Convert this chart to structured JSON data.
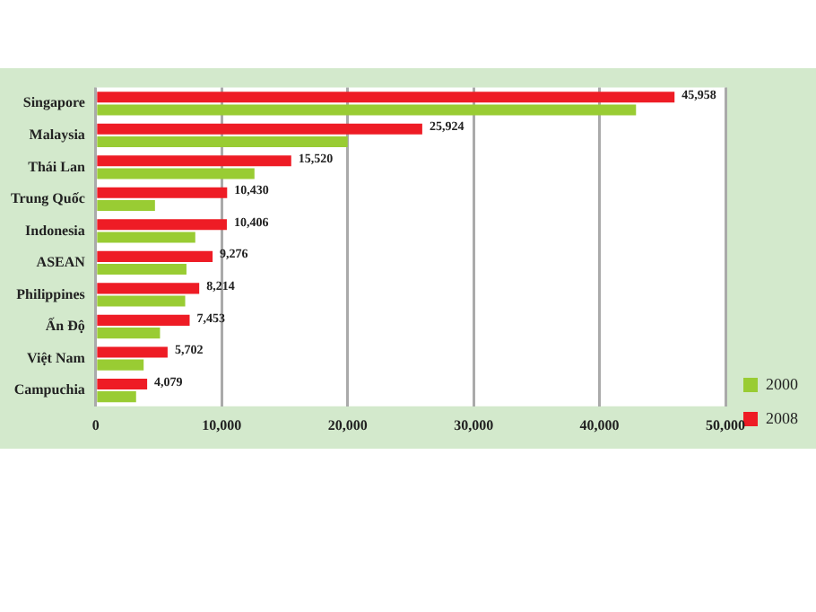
{
  "chart_data": {
    "type": "bar",
    "orientation": "horizontal",
    "categories": [
      "Singapore",
      "Malaysia",
      "Thái Lan",
      "Trung Quốc",
      "Indonesia",
      "ASEAN",
      "Philippines",
      "Ấn Độ",
      "Việt Nam",
      "Campuchia"
    ],
    "series": [
      {
        "name": "2000",
        "color": "#99cc33",
        "values": [
          42900,
          20000,
          12600,
          4700,
          7900,
          7200,
          7100,
          5100,
          3800,
          3200
        ]
      },
      {
        "name": "2008",
        "color": "#ee1c25",
        "values": [
          45958,
          25924,
          15520,
          10430,
          10406,
          9276,
          8214,
          7453,
          5702,
          4079
        ],
        "value_labels": [
          "45,958",
          "25,924",
          "15,520",
          "10,430",
          "10,406",
          "9,276",
          "8,214",
          "7,453",
          "5,702",
          "4,079"
        ]
      }
    ],
    "xlim": [
      0,
      50000
    ],
    "xticks": [
      0,
      {
        "value": 10000,
        "label": "10,000"
      },
      {
        "value": 20000,
        "label": "20,000"
      },
      {
        "value": 30000,
        "label": "30,000"
      },
      {
        "value": 40000,
        "label": "40,000"
      },
      {
        "value": 50000,
        "label": "50,000"
      }
    ],
    "grid": "x",
    "legend": "bottom right"
  }
}
